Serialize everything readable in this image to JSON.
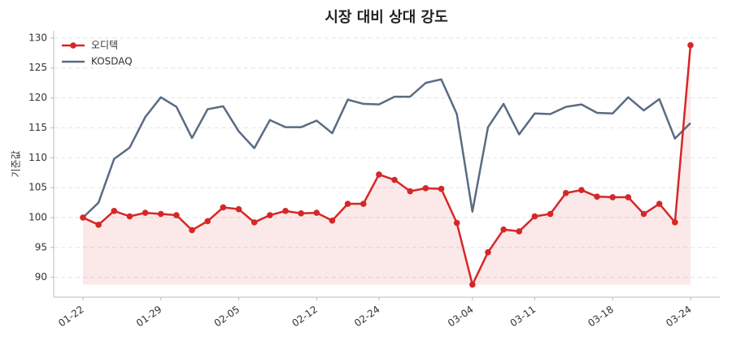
{
  "chart_data": {
    "type": "line",
    "title": "시장 대비 상대 강도",
    "y_label": "기준값",
    "categories": [
      "01-22",
      null,
      null,
      null,
      null,
      "01-29",
      null,
      null,
      null,
      null,
      "02-05",
      null,
      null,
      null,
      null,
      "02-12",
      null,
      null,
      null,
      "02-24",
      null,
      null,
      null,
      null,
      null,
      "03-04",
      null,
      null,
      null,
      "03-11",
      null,
      null,
      null,
      null,
      "03-18",
      null,
      null,
      null,
      null,
      "03-24"
    ],
    "series": [
      {
        "name": "오디텍",
        "color": "#d62728",
        "markers": true,
        "fill": true,
        "values": [
          100,
          98.8,
          101.1,
          100.2,
          100.8,
          100.6,
          100.4,
          97.9,
          99.4,
          101.7,
          101.4,
          99.2,
          100.4,
          101.1,
          100.7,
          100.8,
          99.5,
          102.3,
          102.3,
          107.2,
          106.3,
          104.4,
          104.9,
          104.8,
          99.1,
          88.8,
          94.2,
          98,
          97.7,
          100.2,
          100.6,
          104.1,
          104.6,
          103.5,
          103.4,
          103.4,
          100.6,
          102.3,
          99.2,
          128.8
        ]
      },
      {
        "name": "KOSDAQ",
        "color": "#5a6b82",
        "markers": false,
        "fill": false,
        "values": [
          100,
          102.5,
          109.8,
          111.7,
          116.8,
          120.1,
          118.5,
          113.3,
          118.1,
          118.6,
          114.4,
          111.6,
          116.3,
          115.1,
          115.1,
          116.2,
          114.1,
          119.7,
          119,
          118.9,
          120.2,
          120.2,
          122.5,
          123.1,
          117.3,
          101,
          115.1,
          119,
          113.9,
          117.4,
          117.3,
          118.5,
          118.9,
          117.5,
          117.4,
          120.1,
          117.9,
          119.8,
          113.2,
          115.8
        ]
      }
    ],
    "ylim": [
      86.7,
      131.2
    ],
    "yticks": [
      90,
      95,
      100,
      105,
      110,
      115,
      120,
      125,
      130
    ],
    "grid": true,
    "legend": "upper-left"
  }
}
